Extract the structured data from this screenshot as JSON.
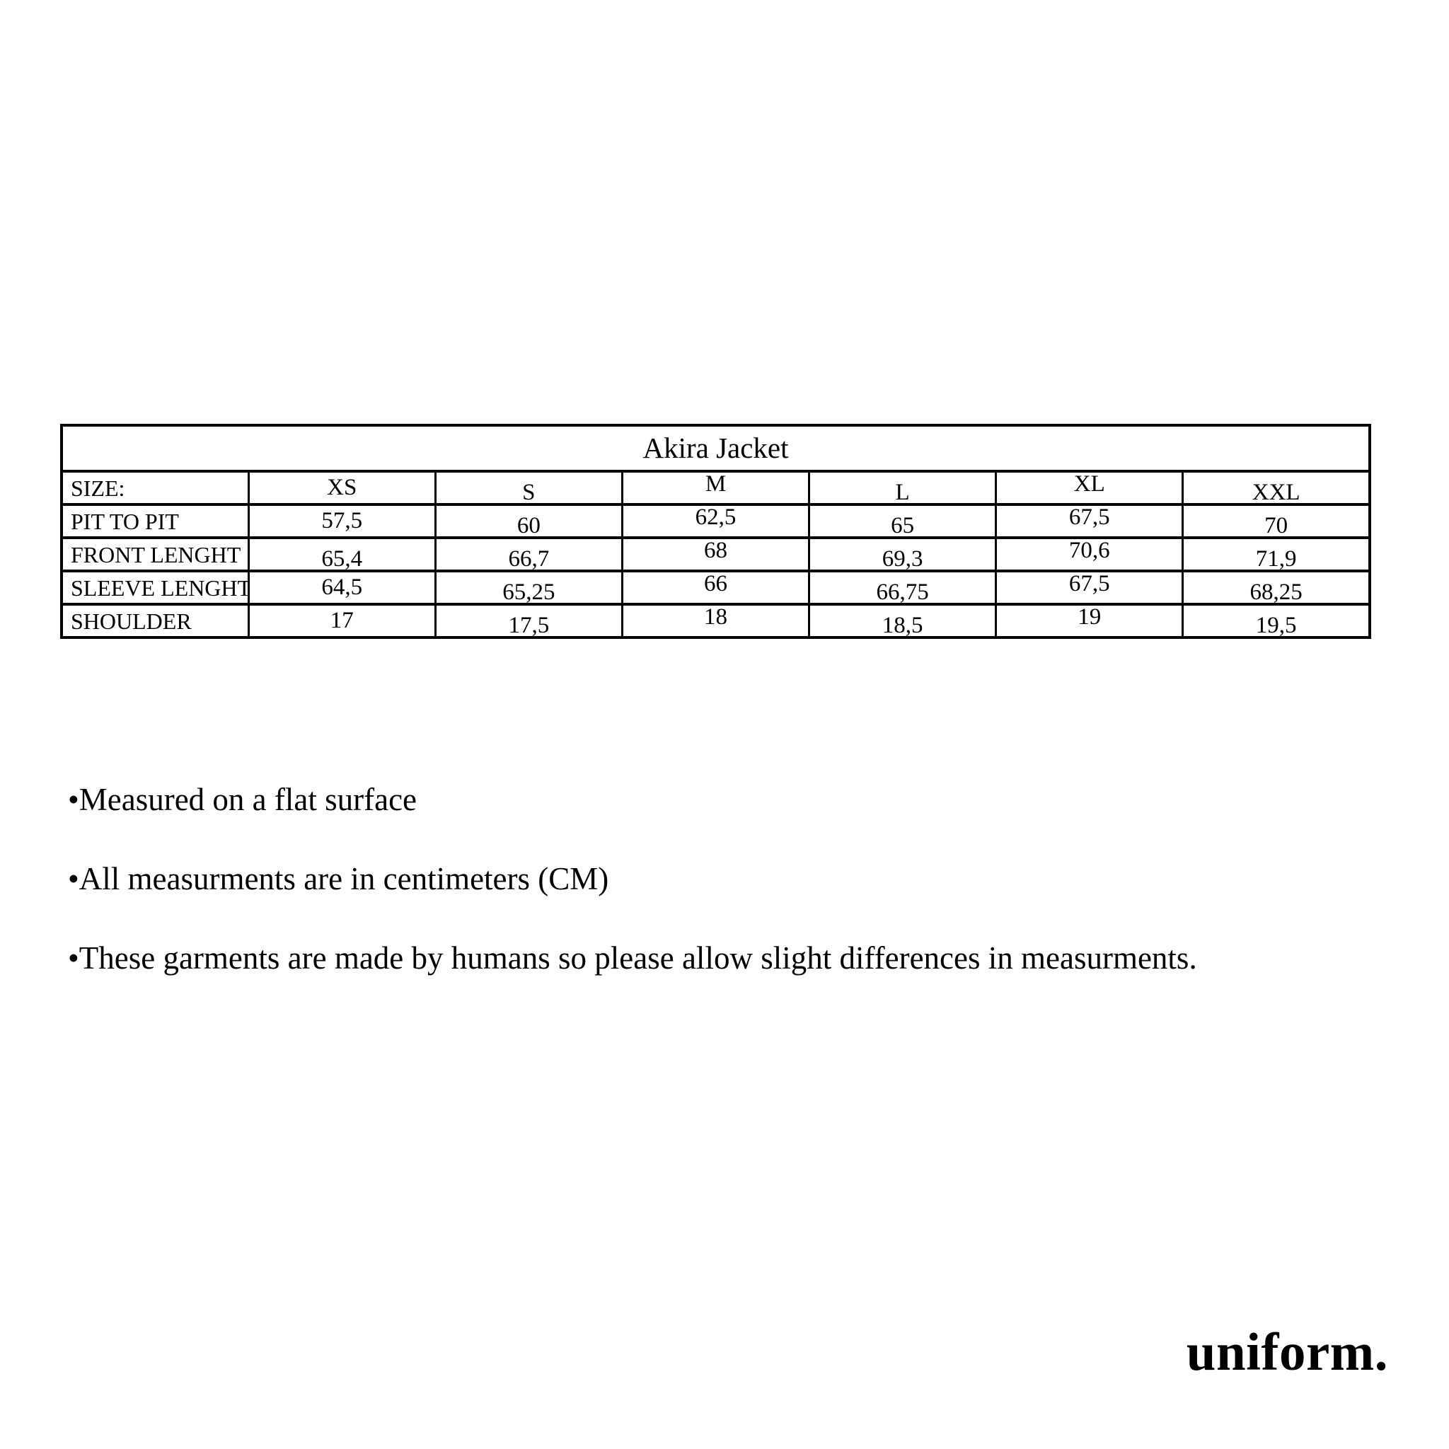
{
  "table": {
    "title": "Akira Jacket",
    "size_label": "SIZE:",
    "sizes": [
      "XS",
      "S",
      "M",
      "L",
      "XL",
      "XXL"
    ],
    "rows": [
      {
        "label": "PIT TO PIT",
        "values": [
          "57,5",
          "60",
          "62,5",
          "65",
          "67,5",
          "70"
        ]
      },
      {
        "label": "FRONT LENGHT",
        "values": [
          "65,4",
          "66,7",
          "68",
          "69,3",
          "70,6",
          "71,9"
        ]
      },
      {
        "label": "SLEEVE LENGHT",
        "values": [
          "64,5",
          "65,25",
          "66",
          "66,75",
          "67,5",
          "68,25"
        ]
      },
      {
        "label": "SHOULDER",
        "values": [
          "17",
          "17,5",
          "18",
          "18,5",
          "19",
          "19,5"
        ]
      }
    ]
  },
  "notes": [
    "•Measured on a flat surface",
    "•All measurments are in centimeters (CM)",
    "•These garments are made by humans so please allow slight differences in measurments."
  ],
  "logo_text": "uniform.",
  "colors": {
    "ink": "#000000",
    "background": "#ffffff"
  }
}
